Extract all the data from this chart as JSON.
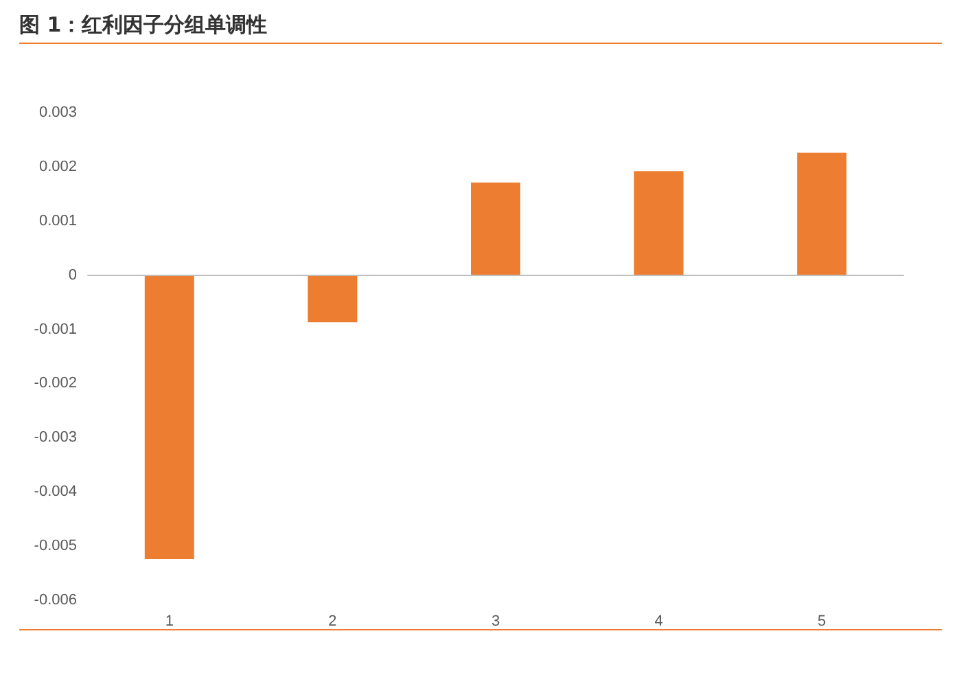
{
  "chart_data": {
    "type": "bar",
    "title": "图 1：红利因子分组单调性",
    "categories": [
      "1",
      "2",
      "3",
      "4",
      "5"
    ],
    "values": [
      -0.00524,
      -0.00087,
      0.00171,
      0.00192,
      0.00226
    ],
    "color": "#ed7d31",
    "ylim": [
      -0.006,
      0.003
    ],
    "yticks": [
      -0.006,
      -0.005,
      -0.004,
      -0.003,
      -0.002,
      -0.001,
      0,
      0.001,
      0.002,
      0.003
    ]
  }
}
